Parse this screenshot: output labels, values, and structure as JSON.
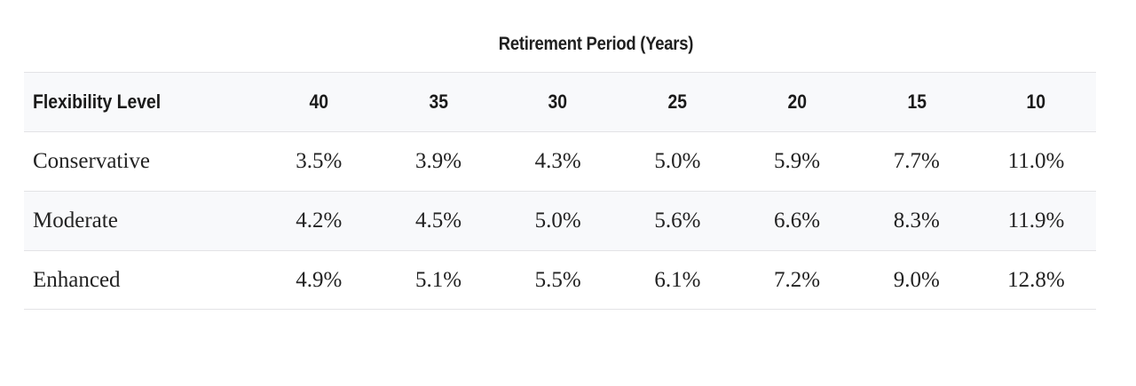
{
  "table": {
    "super_header": "Retirement Period (Years)",
    "columns": [
      "Flexibility Level",
      "40",
      "35",
      "30",
      "25",
      "20",
      "15",
      "10"
    ],
    "rows": [
      {
        "label": "Conservative",
        "values": [
          "3.5%",
          "3.9%",
          "4.3%",
          "5.0%",
          "5.9%",
          "7.7%",
          "11.0%"
        ]
      },
      {
        "label": "Moderate",
        "values": [
          "4.2%",
          "4.5%",
          "5.0%",
          "5.6%",
          "6.6%",
          "8.3%",
          "11.9%"
        ]
      },
      {
        "label": "Enhanced",
        "values": [
          "4.9%",
          "5.1%",
          "5.5%",
          "6.1%",
          "7.2%",
          "9.0%",
          "12.8%"
        ]
      }
    ]
  }
}
